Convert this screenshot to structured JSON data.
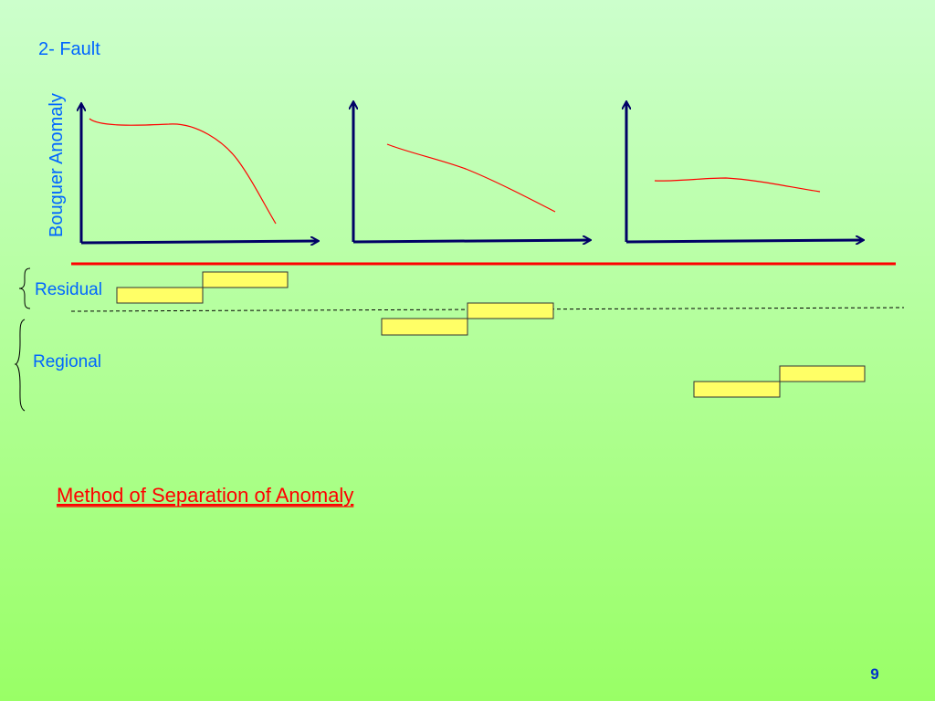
{
  "slide": {
    "heading": "2- Fault",
    "axis_label": "Bouguer Anomaly",
    "labels": {
      "residual": "Residual",
      "regional": "Regional"
    },
    "caption": "Method of Separation of Anomaly",
    "page_number": "9"
  }
}
